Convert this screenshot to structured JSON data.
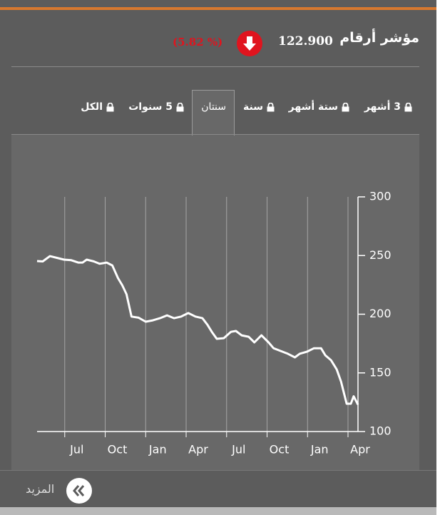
{
  "header": {
    "title": "مؤشر أرقام",
    "value": "122.900",
    "change": "(% 5.82)"
  },
  "tabs": [
    "3 أشهر",
    "ستة أشهر",
    "سنة",
    "سنتان",
    "5 سنوات",
    "الكل"
  ],
  "active_tab": 3,
  "more": "المزيد",
  "chart_data": {
    "type": "line",
    "color": "#ffffff",
    "grid": "x",
    "x": [
      0.95,
      1.37,
      1.9,
      2.42,
      2.95,
      3.48,
      4.0,
      4.32,
      4.63,
      5.16,
      5.58,
      6.11,
      6.53,
      6.95,
      7.27,
      7.58,
      7.95,
      8.48,
      9.0,
      9.53,
      10.06,
      10.58,
      11.11,
      11.63,
      12.16,
      12.69,
      13.21,
      13.58,
      13.9,
      14.27,
      14.79,
      15.32,
      15.69,
      16.11,
      16.63,
      17.06,
      17.58,
      18.11,
      18.48,
      19.0,
      19.53,
      20.06,
      20.42,
      20.95,
      21.48,
      22.0,
      22.32,
      22.74,
      23.16,
      23.48,
      23.9,
      24.21,
      24.42,
      24.74
    ],
    "values": [
      245.3,
      245,
      249.5,
      248,
      246.5,
      246,
      244,
      244,
      246.5,
      245,
      243,
      244,
      241.6,
      230.7,
      224.6,
      217,
      198,
      197,
      193.6,
      194.8,
      196.6,
      199,
      196.6,
      198,
      201,
      198,
      196.6,
      191,
      185,
      179,
      179.6,
      185,
      185.7,
      182,
      180.8,
      176,
      182,
      176,
      171,
      168.7,
      166.3,
      163.2,
      166.3,
      168,
      171,
      171,
      165,
      160.8,
      153,
      142.6,
      123.7,
      123.7,
      130,
      122.9
    ],
    "xlim": [
      0.95,
      24.74
    ],
    "xticks": [
      {
        "value": 3,
        "label": "Jul"
      },
      {
        "value": 6,
        "label": "Oct"
      },
      {
        "value": 9,
        "label": "Jan"
      },
      {
        "value": 12,
        "label": "Apr"
      },
      {
        "value": 15,
        "label": "Jul"
      },
      {
        "value": 18,
        "label": "Oct"
      },
      {
        "value": 21,
        "label": "Jan"
      },
      {
        "value": 24,
        "label": "Apr"
      }
    ],
    "ylim": [
      100,
      300
    ],
    "yticks": [
      100,
      150,
      200,
      250,
      300
    ]
  }
}
